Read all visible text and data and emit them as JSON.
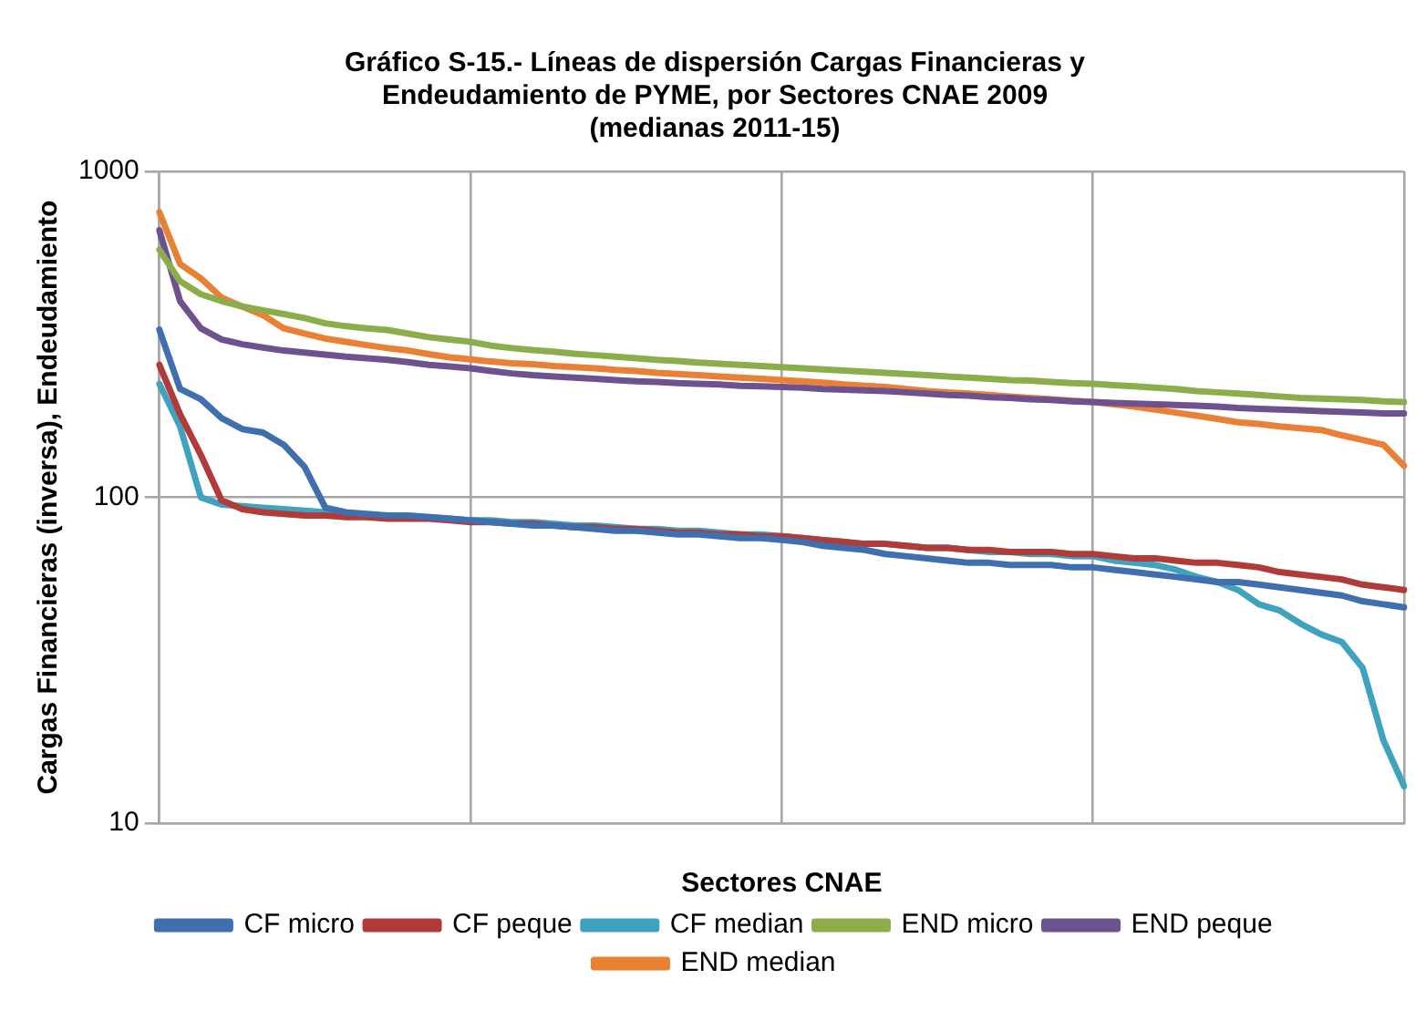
{
  "chart_data": {
    "type": "line",
    "title": "Gráfico S-15.- Líneas de dispersión Cargas Financieras y Endeudamiento de PYME, por Sectores CNAE 2009 (medianas 2011-15)",
    "xlabel": "Sectores CNAE",
    "ylabel": "Cargas Financieras (inversa), Endeudamiento",
    "log": "y",
    "ylim": [
      10,
      1000
    ],
    "yticks": [
      10,
      100,
      1000
    ],
    "grid": true,
    "legend": "bottom",
    "marker": "none",
    "line_style": "solid",
    "categories": [
      null,
      null,
      null,
      null,
      null,
      null,
      null,
      null,
      null,
      null,
      null,
      null,
      null,
      null,
      null,
      null,
      null,
      null,
      null,
      null,
      null,
      null,
      null,
      null,
      null,
      null,
      null,
      null,
      null,
      null,
      null,
      null,
      null,
      null,
      null,
      null,
      null,
      null,
      null,
      null,
      null,
      null,
      null,
      null,
      null,
      null,
      null,
      null,
      null,
      null,
      null,
      null,
      null,
      null,
      null,
      null,
      null,
      null,
      null,
      null,
      null
    ],
    "series": [
      {
        "name": "CF micro",
        "color": "#3f6fae",
        "values": [
          327,
          215,
          200,
          175,
          162,
          158,
          145,
          124,
          93,
          90,
          89,
          88,
          88,
          87,
          86,
          85,
          84,
          83,
          82,
          82,
          81,
          80,
          79,
          79,
          78,
          77,
          77,
          76,
          75,
          75,
          74,
          73,
          71,
          70,
          69,
          67,
          66,
          65,
          64,
          63,
          63,
          62,
          62,
          62,
          61,
          61,
          60,
          59,
          58,
          57,
          56,
          55,
          55,
          54,
          53,
          52,
          51,
          50,
          48,
          47,
          46
        ]
      },
      {
        "name": "CF peque",
        "color": "#b03b39",
        "values": [
          255,
          180,
          135,
          98,
          92,
          90,
          89,
          88,
          88,
          87,
          87,
          86,
          86,
          86,
          85,
          84,
          84,
          83,
          83,
          82,
          81,
          81,
          80,
          80,
          79,
          78,
          78,
          77,
          77,
          76,
          76,
          75,
          74,
          73,
          72,
          72,
          71,
          70,
          70,
          69,
          69,
          68,
          68,
          68,
          67,
          67,
          66,
          65,
          65,
          64,
          63,
          63,
          62,
          61,
          59,
          58,
          57,
          56,
          54,
          53,
          52
        ]
      },
      {
        "name": "CF median",
        "color": "#3fa2be",
        "values": [
          223,
          165,
          100,
          95,
          94,
          93,
          92,
          91,
          90,
          89,
          88,
          88,
          87,
          87,
          86,
          85,
          85,
          84,
          84,
          83,
          82,
          82,
          81,
          80,
          80,
          79,
          79,
          78,
          77,
          77,
          76,
          75,
          74,
          73,
          72,
          72,
          71,
          70,
          70,
          69,
          68,
          68,
          67,
          67,
          66,
          66,
          64,
          63,
          62,
          60,
          57,
          55,
          52,
          47,
          45,
          41,
          38,
          36,
          30,
          18,
          13
        ]
      },
      {
        "name": "END micro",
        "color": "#8cae4a",
        "values": [
          575,
          460,
          420,
          400,
          385,
          375,
          365,
          355,
          342,
          335,
          330,
          326,
          318,
          310,
          305,
          300,
          292,
          287,
          283,
          280,
          276,
          273,
          270,
          267,
          264,
          262,
          259,
          257,
          255,
          253,
          251,
          249,
          247,
          245,
          243,
          241,
          239,
          237,
          235,
          233,
          231,
          229,
          228,
          226,
          224,
          223,
          221,
          219,
          217,
          215,
          212,
          210,
          208,
          206,
          204,
          202,
          201,
          200,
          199,
          197,
          196
        ]
      },
      {
        "name": "END peque",
        "color": "#6e5290",
        "values": [
          660,
          400,
          330,
          305,
          295,
          288,
          282,
          278,
          274,
          270,
          267,
          264,
          260,
          255,
          252,
          249,
          244,
          240,
          237,
          235,
          233,
          231,
          229,
          227,
          226,
          224,
          223,
          222,
          220,
          219,
          218,
          217,
          215,
          214,
          213,
          212,
          210,
          208,
          206,
          205,
          203,
          202,
          200,
          199,
          197,
          196,
          195,
          194,
          193,
          192,
          191,
          190,
          188,
          187,
          186,
          185,
          184,
          183,
          182,
          181,
          181
        ]
      },
      {
        "name": "END median",
        "color": "#ea8034",
        "values": [
          750,
          520,
          470,
          410,
          385,
          362,
          330,
          318,
          307,
          300,
          293,
          287,
          282,
          275,
          269,
          265,
          261,
          258,
          256,
          253,
          251,
          249,
          246,
          244,
          241,
          239,
          237,
          235,
          233,
          231,
          229,
          227,
          225,
          222,
          220,
          218,
          215,
          212,
          210,
          208,
          206,
          204,
          202,
          200,
          198,
          196,
          193,
          190,
          186,
          182,
          178,
          174,
          170,
          168,
          165,
          163,
          161,
          155,
          150,
          145,
          125
        ]
      }
    ]
  }
}
